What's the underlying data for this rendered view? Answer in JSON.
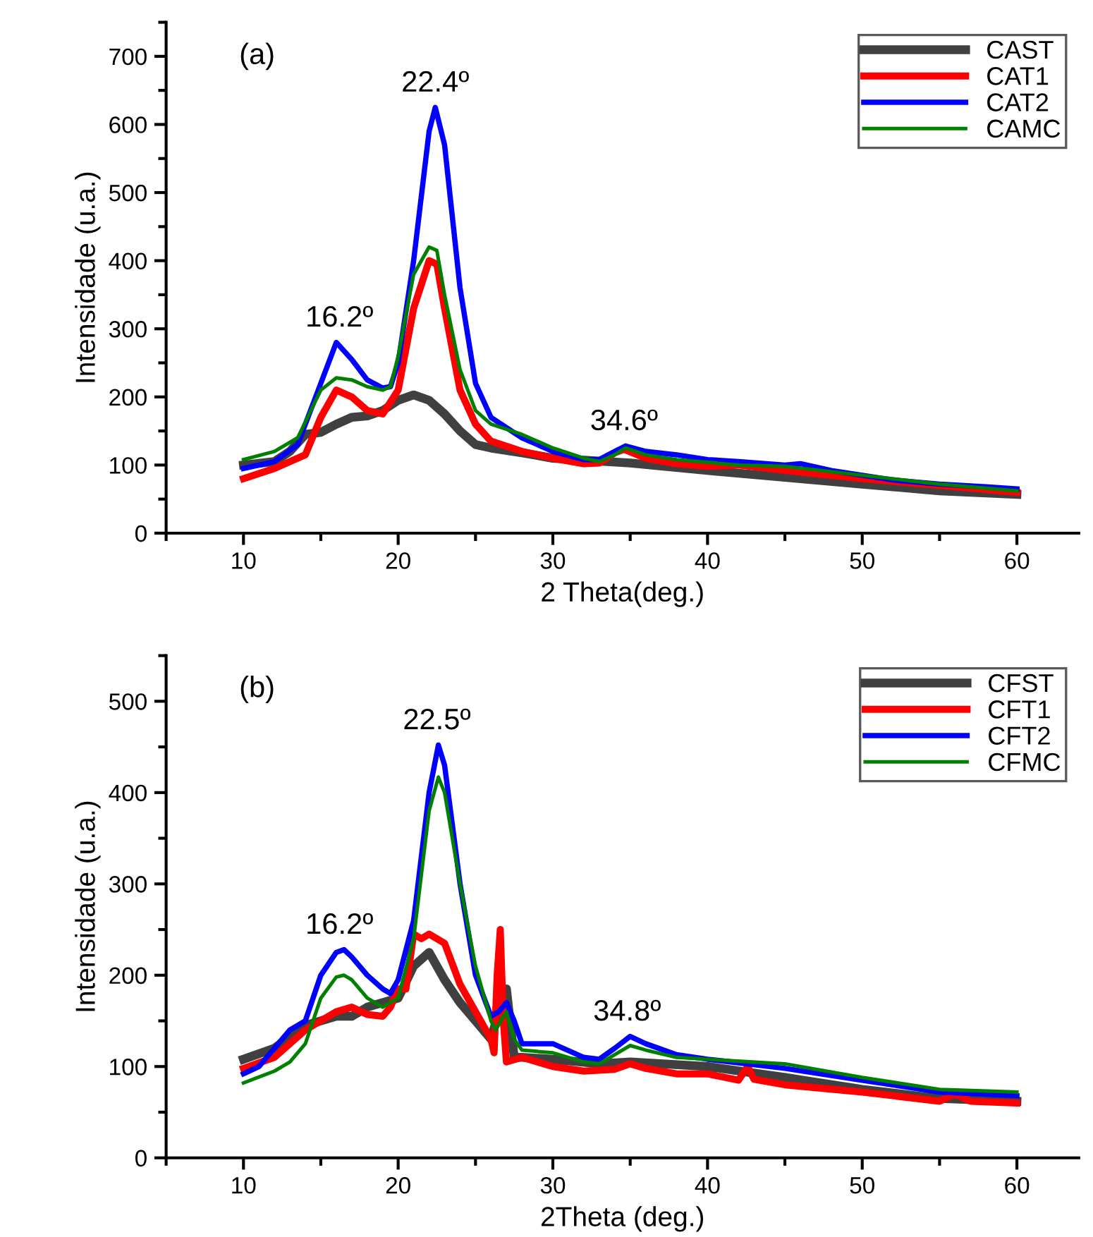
{
  "chart_data": [
    {
      "type": "line",
      "title": "(a)",
      "xlabel": "2 Theta(deg.)",
      "ylabel": "Intensidade (u.a.)",
      "xlim": [
        5,
        64
      ],
      "ylim": [
        0,
        750
      ],
      "xticks": [
        10,
        20,
        30,
        40,
        50,
        60
      ],
      "yticks": [
        0,
        100,
        200,
        300,
        400,
        500,
        600,
        700
      ],
      "grid": false,
      "legend": "top right",
      "marker": "none",
      "line_style": "solid",
      "annotations": [
        {
          "text": "16.2º",
          "x": 16.2,
          "y": 280
        },
        {
          "text": "22.4º",
          "x": 22.4,
          "y": 625
        },
        {
          "text": "34.6º",
          "x": 34.6,
          "y": 128
        }
      ],
      "series": [
        {
          "name": "CAST",
          "color": "#404040",
          "x": [
            10,
            12,
            13,
            14,
            15,
            16,
            17,
            18,
            19,
            20,
            21,
            22,
            23,
            24,
            25,
            26,
            28,
            30,
            35,
            40,
            45,
            50,
            55,
            60
          ],
          "values": [
            100,
            105,
            120,
            145,
            148,
            160,
            170,
            172,
            180,
            195,
            203,
            195,
            175,
            150,
            130,
            125,
            118,
            110,
            103,
            92,
            82,
            72,
            62,
            57
          ]
        },
        {
          "name": "CAT1",
          "color": "#ff0000",
          "x": [
            10,
            12,
            14,
            15,
            16,
            17,
            18,
            19,
            20,
            21,
            22,
            22.5,
            23,
            24,
            25,
            26,
            28,
            30,
            32,
            33,
            34,
            34.6,
            36,
            38,
            40,
            42,
            45,
            50,
            55,
            60
          ],
          "values": [
            80,
            95,
            115,
            170,
            210,
            200,
            180,
            175,
            210,
            330,
            400,
            395,
            330,
            210,
            160,
            135,
            120,
            110,
            102,
            103,
            118,
            123,
            110,
            102,
            98,
            100,
            92,
            80,
            70,
            60
          ]
        },
        {
          "name": "CAT2",
          "color": "#0000ff",
          "x": [
            10,
            12,
            13.5,
            15,
            16,
            17,
            18,
            19,
            19.5,
            20,
            21,
            22,
            22.4,
            23,
            24,
            25,
            26,
            27,
            28,
            30,
            32,
            33,
            34,
            34.7,
            36,
            38,
            40,
            42,
            45,
            46,
            48,
            50,
            52,
            55,
            58,
            60
          ],
          "values": [
            95,
            105,
            130,
            220,
            280,
            255,
            225,
            213,
            215,
            250,
            400,
            590,
            625,
            570,
            360,
            220,
            170,
            155,
            140,
            120,
            108,
            108,
            120,
            128,
            120,
            115,
            108,
            105,
            100,
            102,
            92,
            85,
            78,
            72,
            68,
            65
          ]
        },
        {
          "name": "CAMC",
          "color": "#008000",
          "x": [
            10,
            12,
            13.5,
            15,
            16,
            17,
            18,
            19,
            19.5,
            20,
            21,
            22,
            22.5,
            23,
            24,
            25,
            26,
            28,
            30,
            32,
            33,
            34,
            34.7,
            36,
            38,
            40,
            42,
            45,
            50,
            55,
            60
          ],
          "values": [
            108,
            120,
            140,
            210,
            228,
            225,
            215,
            210,
            215,
            260,
            380,
            420,
            415,
            350,
            240,
            180,
            160,
            145,
            125,
            110,
            105,
            115,
            125,
            115,
            108,
            104,
            100,
            98,
            85,
            72,
            62
          ]
        }
      ]
    },
    {
      "type": "line",
      "title": "(b)",
      "xlabel": "2Theta (deg.)",
      "ylabel": "Intensidade (u.a.)",
      "xlim": [
        5,
        64
      ],
      "ylim": [
        0,
        550
      ],
      "xticks": [
        10,
        20,
        30,
        40,
        50,
        60
      ],
      "yticks": [
        0,
        100,
        200,
        300,
        400,
        500
      ],
      "grid": false,
      "legend": "top right",
      "marker": "none",
      "line_style": "solid",
      "annotations": [
        {
          "text": "16.2º",
          "x": 16.2,
          "y": 228
        },
        {
          "text": "22.5º",
          "x": 22.5,
          "y": 452
        },
        {
          "text": "34.8º",
          "x": 34.8,
          "y": 133
        }
      ],
      "series": [
        {
          "name": "CFST",
          "color": "#404040",
          "x": [
            10,
            12,
            14,
            16,
            17,
            18,
            20,
            21,
            22,
            23,
            24,
            25,
            26,
            26.5,
            27,
            27.5,
            28,
            30,
            33,
            35,
            40,
            45,
            50,
            55,
            60
          ],
          "values": [
            108,
            120,
            145,
            155,
            155,
            165,
            175,
            210,
            225,
            195,
            170,
            150,
            130,
            160,
            185,
            110,
            110,
            108,
            103,
            105,
            100,
            88,
            75,
            65,
            62
          ]
        },
        {
          "name": "CFT1",
          "color": "#ff0000",
          "x": [
            10,
            12,
            14,
            15,
            16,
            17,
            18,
            19,
            19.5,
            20,
            20.5,
            21,
            21.5,
            22,
            23,
            24,
            25,
            26,
            26.2,
            26.4,
            26.6,
            26.8,
            27,
            28,
            30,
            32,
            34,
            35,
            36,
            38,
            40,
            42,
            42.6,
            43,
            45,
            50,
            55,
            56,
            57,
            60
          ],
          "values": [
            98,
            110,
            140,
            150,
            160,
            165,
            157,
            155,
            165,
            185,
            185,
            245,
            240,
            245,
            235,
            190,
            160,
            130,
            115,
            200,
            250,
            150,
            105,
            110,
            100,
            95,
            97,
            103,
            98,
            92,
            92,
            85,
            100,
            86,
            80,
            72,
            62,
            70,
            62,
            60
          ]
        },
        {
          "name": "CFT2",
          "color": "#0000ff",
          "x": [
            10,
            11,
            12,
            13,
            14,
            15,
            16,
            16.5,
            17,
            18,
            19,
            19.5,
            20,
            21,
            22,
            22.6,
            23,
            24,
            25,
            26,
            26.5,
            27,
            27.5,
            28,
            29,
            30,
            32,
            33,
            34,
            35,
            36,
            38,
            40,
            45,
            50,
            55,
            60
          ],
          "values": [
            92,
            100,
            120,
            140,
            150,
            200,
            225,
            228,
            220,
            200,
            185,
            180,
            195,
            260,
            400,
            452,
            430,
            300,
            200,
            155,
            160,
            170,
            150,
            125,
            125,
            125,
            110,
            108,
            120,
            133,
            125,
            113,
            108,
            98,
            85,
            72,
            68
          ]
        },
        {
          "name": "CFMC",
          "color": "#008000",
          "x": [
            10,
            12,
            13,
            14,
            15,
            16,
            16.5,
            17,
            18,
            19,
            20,
            21,
            22,
            22.6,
            23,
            24,
            25,
            26,
            26.3,
            27,
            27.5,
            28,
            30,
            32,
            33,
            35,
            36,
            38,
            40,
            45,
            50,
            55,
            60
          ],
          "values": [
            82,
            95,
            105,
            125,
            175,
            198,
            200,
            195,
            175,
            165,
            175,
            240,
            380,
            417,
            400,
            300,
            210,
            150,
            140,
            160,
            130,
            118,
            115,
            105,
            103,
            123,
            118,
            110,
            108,
            103,
            88,
            75,
            72
          ]
        }
      ]
    }
  ]
}
